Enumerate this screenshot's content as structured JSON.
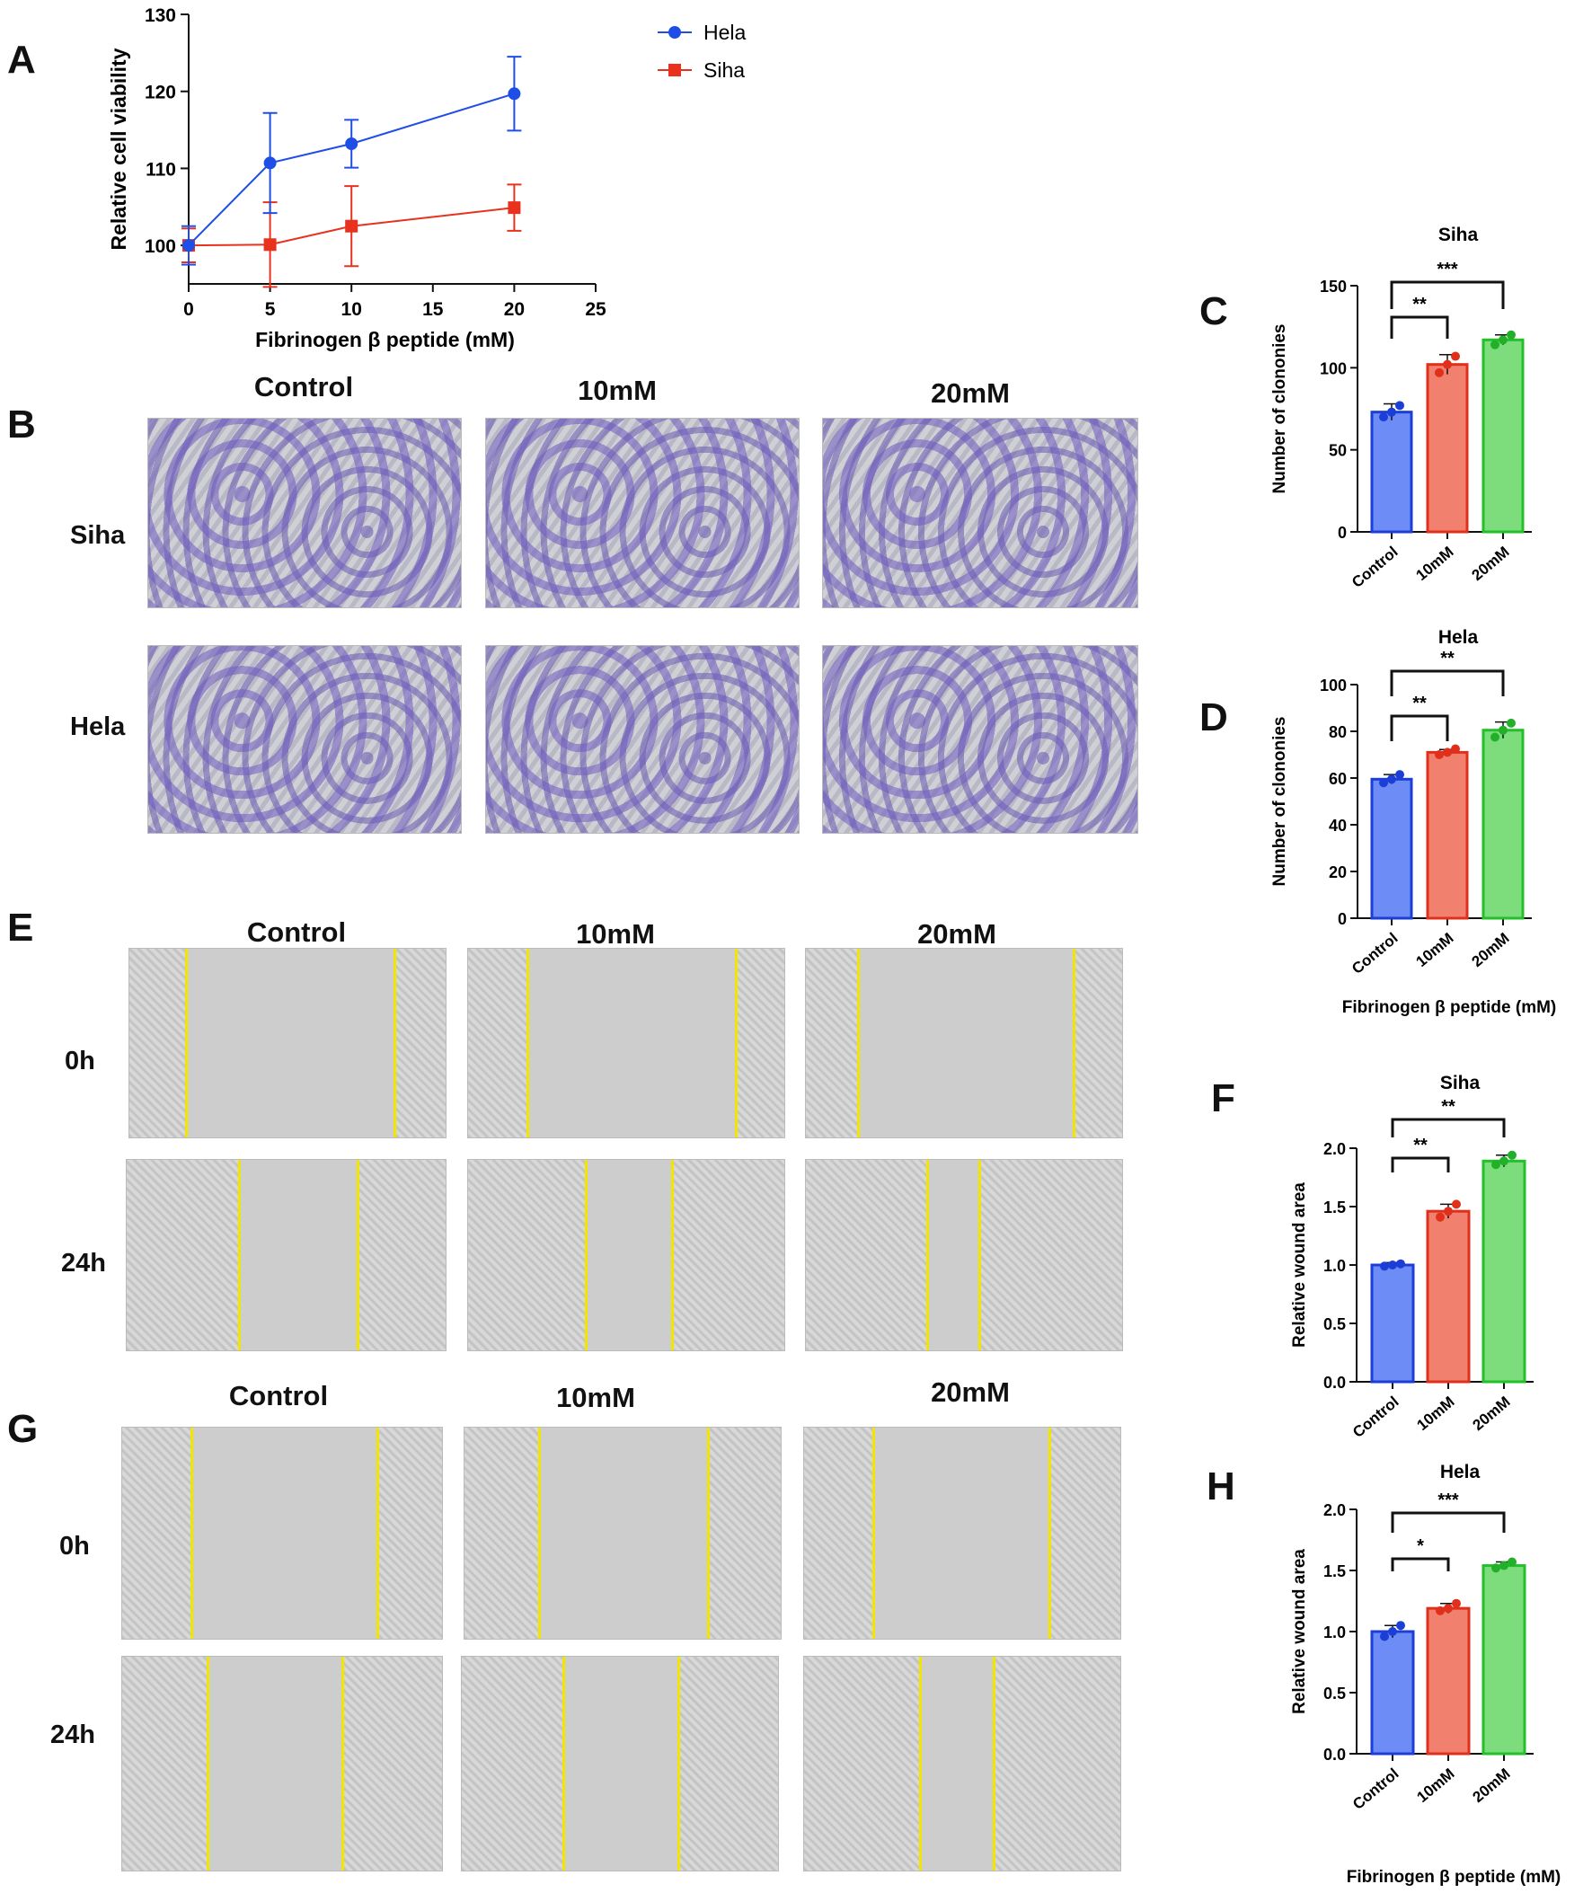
{
  "panels": {
    "A": "A",
    "B": "B",
    "C": "C",
    "D": "D",
    "E": "E",
    "F": "F",
    "G": "G",
    "H": "H"
  },
  "image_labels": {
    "cols_B": [
      "Control",
      "10mM",
      "20mM"
    ],
    "rows_B": [
      "Siha",
      "Hela"
    ],
    "cols_E": [
      "Control",
      "10mM",
      "20mM"
    ],
    "rows_E": [
      "0h",
      "24h"
    ],
    "cols_G": [
      "Control",
      "10mM",
      "20mM"
    ],
    "rows_G": [
      "0h",
      "24h"
    ]
  },
  "colors": {
    "blue": "#1f4ee6",
    "red": "#e8321e",
    "bar_blue": "#6d8cf5",
    "bar_red": "#f2806e",
    "bar_green": "#7ddc7b"
  },
  "chart_data": [
    {
      "id": "A",
      "type": "line",
      "title": "",
      "xlabel": "Fibrinogen β peptide (mM)",
      "ylabel": "Relative cell viability",
      "xlim": [
        0,
        25
      ],
      "ylim": [
        95,
        130
      ],
      "xticks": [
        "0",
        "5",
        "10",
        "15",
        "20",
        "25"
      ],
      "yticks": [
        "100",
        "110",
        "120",
        "130"
      ],
      "xtick_values": [
        0,
        5,
        10,
        15,
        20,
        25
      ],
      "ytick_values": [
        100,
        110,
        120,
        130
      ],
      "x": [
        0,
        5,
        10,
        20
      ],
      "series": [
        {
          "name": "Hela",
          "values": [
            100,
            110.7,
            113.2,
            119.7
          ],
          "err": [
            2.5,
            6.5,
            3.1,
            4.8
          ],
          "color": "#1f4ee6",
          "marker": "circle"
        },
        {
          "name": "Siha",
          "values": [
            100,
            100.1,
            102.5,
            104.9
          ],
          "err": [
            2.2,
            5.5,
            5.2,
            3.0
          ],
          "color": "#e8321e",
          "marker": "square"
        }
      ]
    },
    {
      "id": "C",
      "type": "bar",
      "title": "Siha",
      "categories": [
        "Control",
        "10mM",
        "20mM"
      ],
      "values": [
        73,
        102,
        117
      ],
      "err": [
        5,
        6,
        3
      ],
      "points": [
        [
          70,
          73,
          77
        ],
        [
          97,
          102,
          107
        ],
        [
          114,
          117,
          120
        ]
      ],
      "ylabel": "Number of clononies",
      "xlabel": "",
      "ylim": [
        0,
        150
      ],
      "yticks": [
        "0",
        "50",
        "100",
        "150"
      ],
      "ytick_values": [
        0,
        50,
        100,
        150
      ],
      "sig": [
        {
          "from": 0,
          "to": 1,
          "label": "**"
        },
        {
          "from": 0,
          "to": 2,
          "label": "***"
        }
      ]
    },
    {
      "id": "D",
      "type": "bar",
      "title": "Hela",
      "categories": [
        "Control",
        "10mM",
        "20mM"
      ],
      "values": [
        59.5,
        71,
        80.5
      ],
      "err": [
        2,
        1.2,
        3.5
      ],
      "points": [
        [
          58,
          59.5,
          61.5
        ],
        [
          70,
          71,
          72.5
        ],
        [
          77.5,
          80.5,
          83.5
        ]
      ],
      "ylabel": "Number of clononies",
      "xlabel": "Fibrinogen β peptide (mM)",
      "ylim": [
        0,
        100
      ],
      "yticks": [
        "0",
        "20",
        "40",
        "60",
        "80",
        "100"
      ],
      "ytick_values": [
        0,
        20,
        40,
        60,
        80,
        100
      ],
      "sig": [
        {
          "from": 0,
          "to": 1,
          "label": "**"
        },
        {
          "from": 0,
          "to": 2,
          "label": "**"
        }
      ]
    },
    {
      "id": "F",
      "type": "bar",
      "title": "Siha",
      "categories": [
        "Control",
        "10mM",
        "20mM"
      ],
      "values": [
        1.0,
        1.46,
        1.89
      ],
      "err": [
        0.02,
        0.06,
        0.05
      ],
      "points": [
        [
          0.99,
          1.0,
          1.01
        ],
        [
          1.41,
          1.46,
          1.52
        ],
        [
          1.86,
          1.89,
          1.94
        ]
      ],
      "ylabel": "Relative wound area",
      "xlabel": "",
      "ylim": [
        0,
        2.0
      ],
      "yticks": [
        "0.0",
        "0.5",
        "1.0",
        "1.5",
        "2.0"
      ],
      "ytick_values": [
        0,
        0.5,
        1.0,
        1.5,
        2.0
      ],
      "sig": [
        {
          "from": 0,
          "to": 1,
          "label": "**"
        },
        {
          "from": 0,
          "to": 2,
          "label": "**"
        }
      ]
    },
    {
      "id": "H",
      "type": "bar",
      "title": "Hela",
      "categories": [
        "Control",
        "10mM",
        "20mM"
      ],
      "values": [
        1.0,
        1.19,
        1.54
      ],
      "err": [
        0.05,
        0.04,
        0.03
      ],
      "points": [
        [
          0.96,
          1.0,
          1.05
        ],
        [
          1.17,
          1.19,
          1.23
        ],
        [
          1.52,
          1.54,
          1.57
        ]
      ],
      "ylabel": "Relative wound area",
      "xlabel": "Fibrinogen β peptide (mM)",
      "ylim": [
        0,
        2.0
      ],
      "yticks": [
        "0.0",
        "0.5",
        "1.0",
        "1.5",
        "2.0"
      ],
      "ytick_values": [
        0,
        0.5,
        1.0,
        1.5,
        2.0
      ],
      "sig": [
        {
          "from": 0,
          "to": 1,
          "label": "*"
        },
        {
          "from": 0,
          "to": 2,
          "label": "***"
        }
      ]
    }
  ]
}
